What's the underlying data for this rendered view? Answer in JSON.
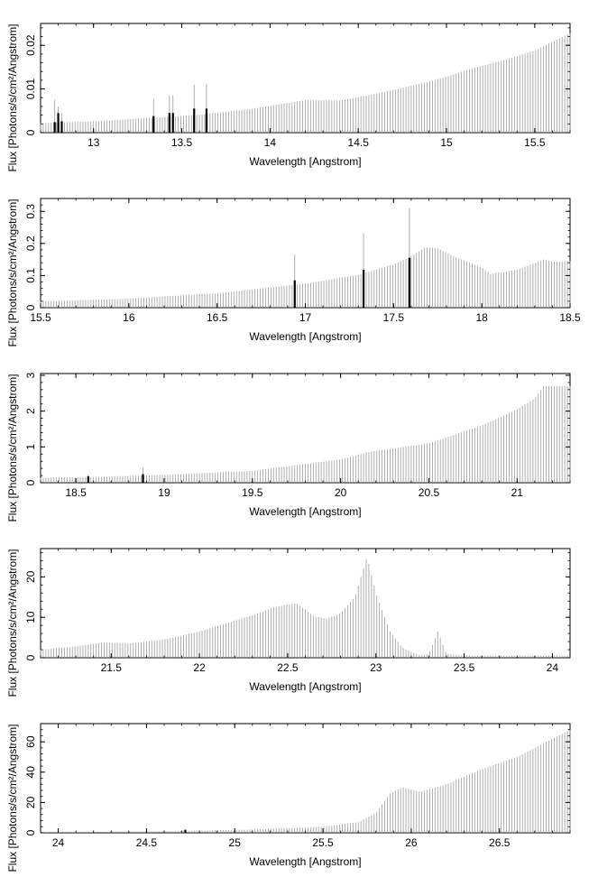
{
  "chart_data": [
    {
      "type": "bar",
      "xlabel": "Wavelength [Angstrom]",
      "ylabel": "Flux [Photons/s/cm²/Angstrom]",
      "xlim": [
        12.7,
        15.7
      ],
      "ylim": [
        0,
        0.025
      ],
      "xticks": [
        13,
        13.5,
        14,
        14.5,
        15,
        15.5
      ],
      "xtick_labels": [
        "13",
        "13.5",
        "14",
        "14.5",
        "15",
        "15.5"
      ],
      "yticks": [
        0,
        0.01,
        0.02
      ],
      "ytick_labels": [
        "0",
        "0.01",
        "0.02"
      ],
      "continuum": [
        [
          12.7,
          0.0022
        ],
        [
          13.0,
          0.0026
        ],
        [
          13.3,
          0.0033
        ],
        [
          13.6,
          0.0041
        ],
        [
          13.9,
          0.0055
        ],
        [
          14.1,
          0.0068
        ],
        [
          14.2,
          0.0074
        ],
        [
          14.4,
          0.0074
        ],
        [
          14.55,
          0.0085
        ],
        [
          14.7,
          0.0098
        ],
        [
          14.85,
          0.0112
        ],
        [
          15.0,
          0.0128
        ],
        [
          15.15,
          0.0148
        ],
        [
          15.3,
          0.0163
        ],
        [
          15.5,
          0.0188
        ],
        [
          15.7,
          0.0228
        ]
      ],
      "lines": [
        {
          "x": 12.78,
          "band": 0.0024,
          "peak": 0.0075
        },
        {
          "x": 12.8,
          "band": 0.0045,
          "peak": 0.006
        },
        {
          "x": 12.82,
          "band": 0.0026,
          "peak": 0.0045
        },
        {
          "x": 13.34,
          "band": 0.0038,
          "peak": 0.0078
        },
        {
          "x": 13.43,
          "band": 0.0045,
          "peak": 0.0085
        },
        {
          "x": 13.45,
          "band": 0.0045,
          "peak": 0.0085
        },
        {
          "x": 13.57,
          "band": 0.0055,
          "peak": 0.011
        },
        {
          "x": 13.64,
          "band": 0.0055,
          "peak": 0.0112
        }
      ]
    },
    {
      "type": "bar",
      "xlabel": "Wavelength [Angstrom]",
      "ylabel": "Flux [Photons/s/cm²/Angstrom]",
      "xlim": [
        15.5,
        18.5
      ],
      "ylim": [
        0,
        0.34
      ],
      "xticks": [
        15.5,
        16,
        16.5,
        17,
        17.5,
        18,
        18.5
      ],
      "xtick_labels": [
        "15.5",
        "16",
        "16.5",
        "17",
        "17.5",
        "18",
        "18.5"
      ],
      "yticks": [
        0,
        0.1,
        0.2,
        0.3
      ],
      "ytick_labels": [
        "0",
        "0.1",
        "0.2",
        "0.3"
      ],
      "continuum": [
        [
          15.5,
          0.02
        ],
        [
          16.0,
          0.028
        ],
        [
          16.5,
          0.045
        ],
        [
          17.0,
          0.075
        ],
        [
          17.3,
          0.102
        ],
        [
          17.5,
          0.135
        ],
        [
          17.6,
          0.16
        ],
        [
          17.68,
          0.188
        ],
        [
          17.75,
          0.185
        ],
        [
          17.85,
          0.158
        ],
        [
          18.0,
          0.125
        ],
        [
          18.05,
          0.105
        ],
        [
          18.2,
          0.118
        ],
        [
          18.35,
          0.15
        ],
        [
          18.4,
          0.143
        ],
        [
          18.5,
          0.145
        ]
      ],
      "lines": [
        {
          "x": 16.94,
          "band": 0.085,
          "peak": 0.165
        },
        {
          "x": 17.33,
          "band": 0.118,
          "peak": 0.232
        },
        {
          "x": 17.59,
          "band": 0.155,
          "peak": 0.31
        }
      ]
    },
    {
      "type": "bar",
      "xlabel": "Wavelength [Angstrom]",
      "ylabel": "Flux [Photons/s/cm²/Angstrom]",
      "xlim": [
        18.3,
        21.3
      ],
      "ylim": [
        0,
        3.05
      ],
      "xticks": [
        18.5,
        19,
        19.5,
        20,
        20.5,
        21
      ],
      "xtick_labels": [
        "18.5",
        "19",
        "19.5",
        "20",
        "20.5",
        "21"
      ],
      "yticks": [
        0,
        1,
        2,
        3
      ],
      "ytick_labels": [
        "0",
        "1",
        "2",
        "3"
      ],
      "continuum": [
        [
          18.3,
          0.14
        ],
        [
          18.6,
          0.16
        ],
        [
          19.0,
          0.22
        ],
        [
          19.5,
          0.33
        ],
        [
          20.0,
          0.65
        ],
        [
          20.15,
          0.85
        ],
        [
          20.5,
          1.1
        ],
        [
          20.8,
          1.6
        ],
        [
          21.0,
          2.05
        ],
        [
          21.1,
          2.35
        ],
        [
          21.15,
          2.7
        ],
        [
          21.3,
          2.7
        ]
      ],
      "lines": [
        {
          "x": 18.57,
          "band": 0.18,
          "peak": 0.22
        },
        {
          "x": 18.88,
          "band": 0.24,
          "peak": 0.42
        }
      ]
    },
    {
      "type": "bar",
      "xlabel": "Wavelength [Angstrom]",
      "ylabel": "Flux [Photons/s/cm²/Angstrom]",
      "xlim": [
        21.1,
        24.1
      ],
      "ylim": [
        0,
        27
      ],
      "xticks": [
        21.5,
        22,
        22.5,
        23,
        23.5,
        24
      ],
      "xtick_labels": [
        "21.5",
        "22",
        "22.5",
        "23",
        "23.5",
        "24"
      ],
      "yticks": [
        0,
        10,
        20
      ],
      "ytick_labels": [
        "0",
        "10",
        "20"
      ],
      "continuum": [
        [
          21.1,
          2.0
        ],
        [
          21.3,
          2.8
        ],
        [
          21.45,
          3.8
        ],
        [
          21.6,
          3.5
        ],
        [
          21.8,
          4.5
        ],
        [
          22.0,
          6.5
        ],
        [
          22.15,
          8.5
        ],
        [
          22.3,
          10.5
        ],
        [
          22.42,
          12.5
        ],
        [
          22.55,
          13.5
        ],
        [
          22.65,
          10.2
        ],
        [
          22.72,
          9.7
        ],
        [
          22.8,
          11.0
        ],
        [
          22.88,
          15.0
        ],
        [
          22.95,
          25.0
        ],
        [
          23.0,
          16.0
        ],
        [
          23.08,
          6.5
        ],
        [
          23.15,
          2.5
        ],
        [
          23.25,
          0.5
        ],
        [
          23.3,
          1.0
        ],
        [
          23.35,
          6.5
        ],
        [
          23.4,
          1.0
        ],
        [
          23.5,
          0.5
        ],
        [
          24.1,
          0.5
        ]
      ],
      "lines": []
    },
    {
      "type": "bar",
      "xlabel": "Wavelength [Angstrom]",
      "ylabel": "Flux [Photons/s/cm²/Angstrom]",
      "xlim": [
        23.9,
        26.9
      ],
      "ylim": [
        0,
        72
      ],
      "xticks": [
        24,
        24.5,
        25,
        25.5,
        26,
        26.5
      ],
      "xtick_labels": [
        "24",
        "24.5",
        "25",
        "25.5",
        "26",
        "26.5"
      ],
      "yticks": [
        0,
        20,
        40,
        60
      ],
      "ytick_labels": [
        "0",
        "20",
        "40",
        "60"
      ],
      "continuum": [
        [
          23.9,
          0.3
        ],
        [
          24.5,
          0.8
        ],
        [
          25.0,
          1.8
        ],
        [
          25.5,
          4.0
        ],
        [
          25.7,
          7.0
        ],
        [
          25.8,
          13.0
        ],
        [
          25.88,
          26.0
        ],
        [
          25.95,
          30.0
        ],
        [
          26.05,
          27.0
        ],
        [
          26.2,
          32.0
        ],
        [
          26.4,
          42.0
        ],
        [
          26.6,
          50.0
        ],
        [
          26.9,
          68.0
        ]
      ],
      "lines": [
        {
          "x": 24.72,
          "band": 2.0,
          "peak": 2.0
        }
      ]
    }
  ]
}
